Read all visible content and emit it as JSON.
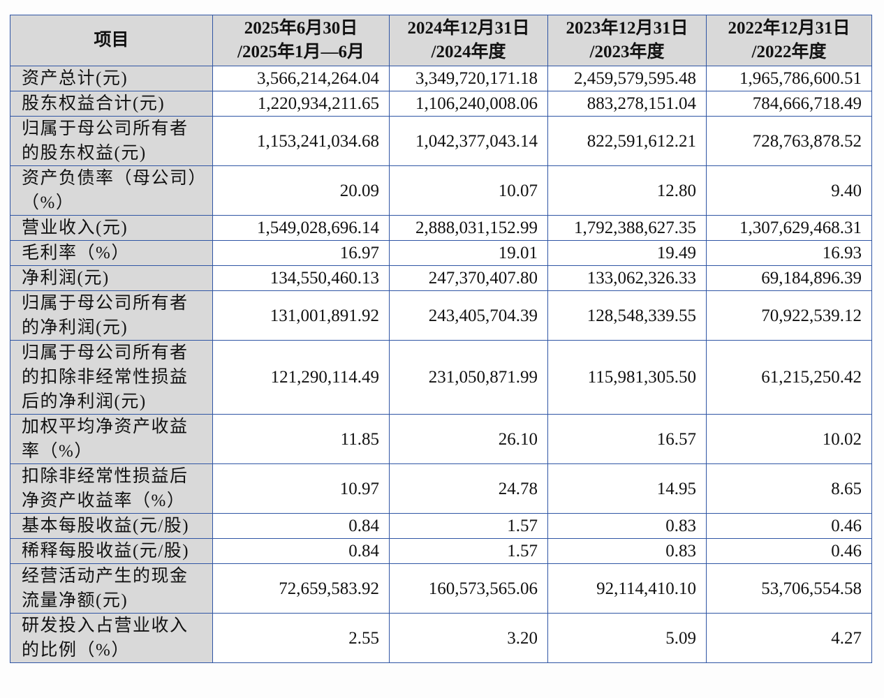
{
  "table": {
    "header": {
      "item_label": "项目",
      "periods": [
        {
          "line1": "2025年6月30日",
          "line2": "/2025年1月—6月"
        },
        {
          "line1": "2024年12月31日",
          "line2": "/2024年度"
        },
        {
          "line1": "2023年12月31日",
          "line2": "/2023年度"
        },
        {
          "line1": "2022年12月31日",
          "line2": "/2022年度"
        }
      ]
    },
    "rows": [
      {
        "label": "资产总计(元)",
        "values": [
          "3,566,214,264.04",
          "3,349,720,171.18",
          "2,459,579,595.48",
          "1,965,786,600.51"
        ]
      },
      {
        "label": "股东权益合计(元)",
        "values": [
          "1,220,934,211.65",
          "1,106,240,008.06",
          "883,278,151.04",
          "784,666,718.49"
        ]
      },
      {
        "label": "归属于母公司所有者的股东权益(元)",
        "values": [
          "1,153,241,034.68",
          "1,042,377,043.14",
          "822,591,612.21",
          "728,763,878.52"
        ]
      },
      {
        "label": "资产负债率（母公司）（%）",
        "values": [
          "20.09",
          "10.07",
          "12.80",
          "9.40"
        ]
      },
      {
        "label": "营业收入(元)",
        "values": [
          "1,549,028,696.14",
          "2,888,031,152.99",
          "1,792,388,627.35",
          "1,307,629,468.31"
        ]
      },
      {
        "label": "毛利率（%）",
        "values": [
          "16.97",
          "19.01",
          "19.49",
          "16.93"
        ]
      },
      {
        "label": "净利润(元)",
        "values": [
          "134,550,460.13",
          "247,370,407.80",
          "133,062,326.33",
          "69,184,896.39"
        ]
      },
      {
        "label": "归属于母公司所有者的净利润(元)",
        "values": [
          "131,001,891.92",
          "243,405,704.39",
          "128,548,339.55",
          "70,922,539.12"
        ]
      },
      {
        "label": "归属于母公司所有者的扣除非经常性损益后的净利润(元)",
        "values": [
          "121,290,114.49",
          "231,050,871.99",
          "115,981,305.50",
          "61,215,250.42"
        ]
      },
      {
        "label": "加权平均净资产收益率（%）",
        "values": [
          "11.85",
          "26.10",
          "16.57",
          "10.02"
        ]
      },
      {
        "label": "扣除非经常性损益后净资产收益率（%）",
        "values": [
          "10.97",
          "24.78",
          "14.95",
          "8.65"
        ]
      },
      {
        "label": "基本每股收益(元/股)",
        "values": [
          "0.84",
          "1.57",
          "0.83",
          "0.46"
        ]
      },
      {
        "label": "稀释每股收益(元/股)",
        "values": [
          "0.84",
          "1.57",
          "0.83",
          "0.46"
        ]
      },
      {
        "label": "经营活动产生的现金流量净额(元)",
        "values": [
          "72,659,583.92",
          "160,573,565.06",
          "92,114,410.10",
          "53,706,554.58"
        ]
      },
      {
        "label": "研发投入占营业收入的比例（%）",
        "values": [
          "2.55",
          "3.20",
          "5.09",
          "4.27"
        ]
      }
    ]
  }
}
